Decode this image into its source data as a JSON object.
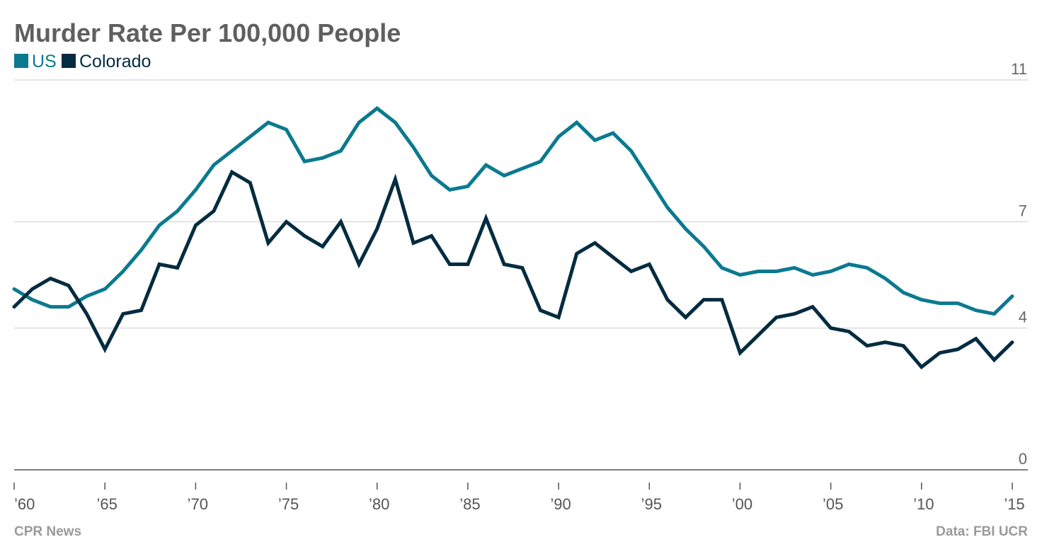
{
  "chart_data": {
    "type": "line",
    "title": "Murder Rate Per 100,000 People",
    "xlabel": "",
    "ylabel": "",
    "xlim": [
      1960,
      2015
    ],
    "ylim": [
      0,
      11
    ],
    "y_ticks": [
      {
        "value": 0,
        "label": "0"
      },
      {
        "value": 4,
        "label": "4"
      },
      {
        "value": 7,
        "label": "7"
      },
      {
        "value": 11,
        "label": "11"
      }
    ],
    "x_ticks": [
      {
        "value": 1960,
        "label": "’60"
      },
      {
        "value": 1965,
        "label": "’65"
      },
      {
        "value": 1970,
        "label": "’70"
      },
      {
        "value": 1975,
        "label": "’75"
      },
      {
        "value": 1980,
        "label": "’80"
      },
      {
        "value": 1985,
        "label": "’85"
      },
      {
        "value": 1990,
        "label": "’90"
      },
      {
        "value": 1995,
        "label": "’95"
      },
      {
        "value": 2000,
        "label": "’00"
      },
      {
        "value": 2005,
        "label": "’05"
      },
      {
        "value": 2010,
        "label": "’10"
      },
      {
        "value": 2015,
        "label": "’15"
      }
    ],
    "grid": true,
    "legend_position": "top-left",
    "x": [
      1960,
      1961,
      1962,
      1963,
      1964,
      1965,
      1966,
      1967,
      1968,
      1969,
      1970,
      1971,
      1972,
      1973,
      1974,
      1975,
      1976,
      1977,
      1978,
      1979,
      1980,
      1981,
      1982,
      1983,
      1984,
      1985,
      1986,
      1987,
      1988,
      1989,
      1990,
      1991,
      1992,
      1993,
      1994,
      1995,
      1996,
      1997,
      1998,
      1999,
      2000,
      2001,
      2002,
      2003,
      2004,
      2005,
      2006,
      2007,
      2008,
      2009,
      2010,
      2011,
      2012,
      2013,
      2014,
      2015
    ],
    "series": [
      {
        "name": "US",
        "color": "#0b7a8f",
        "values": [
          5.1,
          4.8,
          4.6,
          4.6,
          4.9,
          5.1,
          5.6,
          6.2,
          6.9,
          7.3,
          7.9,
          8.6,
          9.0,
          9.4,
          9.8,
          9.6,
          8.7,
          8.8,
          9.0,
          9.8,
          10.2,
          9.8,
          9.1,
          8.3,
          7.9,
          8.0,
          8.6,
          8.3,
          8.5,
          8.7,
          9.4,
          9.8,
          9.3,
          9.5,
          9.0,
          8.2,
          7.4,
          6.8,
          6.3,
          5.7,
          5.5,
          5.6,
          5.6,
          5.7,
          5.5,
          5.6,
          5.8,
          5.7,
          5.4,
          5.0,
          4.8,
          4.7,
          4.7,
          4.5,
          4.4,
          4.9
        ]
      },
      {
        "name": "Colorado",
        "color": "#042c40",
        "values": [
          4.6,
          5.1,
          5.4,
          5.2,
          4.4,
          3.4,
          4.4,
          4.5,
          5.8,
          5.7,
          6.9,
          7.3,
          8.4,
          8.1,
          6.4,
          7.0,
          6.6,
          6.3,
          7.0,
          5.8,
          6.8,
          8.2,
          6.4,
          6.6,
          5.8,
          5.8,
          7.1,
          5.8,
          5.7,
          4.5,
          4.3,
          6.1,
          6.4,
          6.0,
          5.6,
          5.8,
          4.8,
          4.3,
          4.8,
          4.8,
          3.3,
          3.8,
          4.3,
          4.4,
          4.6,
          4.0,
          3.9,
          3.5,
          3.6,
          3.5,
          2.9,
          3.3,
          3.4,
          3.7,
          3.1,
          3.6
        ]
      }
    ]
  },
  "footer": {
    "source_left": "CPR News",
    "source_right": "Data: FBI UCR"
  }
}
